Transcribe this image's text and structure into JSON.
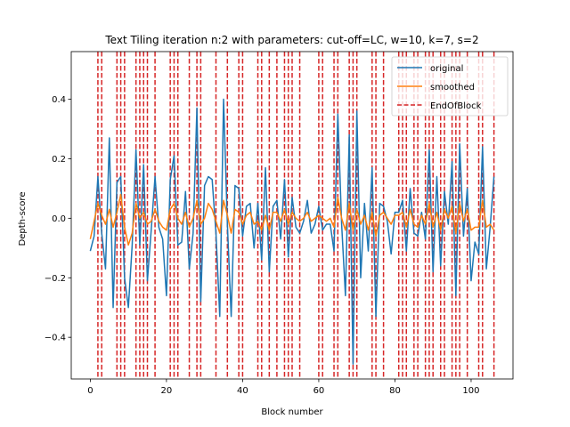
{
  "chart_data": {
    "type": "line",
    "title": "Text Tiling iteration n:2 with parameters: cut-off=LC, w=10, k=7, s=2",
    "xlabel": "Block number",
    "ylabel": "Depth-score",
    "xlim": [
      -5,
      111
    ],
    "ylim": [
      -0.54,
      0.56
    ],
    "xticks": [
      0,
      20,
      40,
      60,
      80,
      100
    ],
    "yticks": [
      -0.4,
      -0.2,
      0.0,
      0.2,
      0.4
    ],
    "xtick_labels": [
      "0",
      "20",
      "40",
      "60",
      "80",
      "100"
    ],
    "ytick_labels": [
      "−0.4",
      "−0.2",
      "0.0",
      "0.2",
      "0.4"
    ],
    "grid": false,
    "legend_position": "top-right",
    "colors": {
      "original": "#1f77b4",
      "smoothed": "#ff7f0e",
      "boundary": "#d62728"
    },
    "series": [
      {
        "name": "original",
        "x": [
          0,
          1,
          2,
          3,
          4,
          5,
          6,
          7,
          8,
          9,
          10,
          11,
          12,
          13,
          14,
          15,
          16,
          17,
          18,
          19,
          20,
          21,
          22,
          23,
          24,
          25,
          26,
          27,
          28,
          29,
          30,
          31,
          32,
          33,
          34,
          35,
          36,
          37,
          38,
          39,
          40,
          41,
          42,
          43,
          44,
          45,
          46,
          47,
          48,
          49,
          50,
          51,
          52,
          53,
          54,
          55,
          56,
          57,
          58,
          59,
          60,
          61,
          62,
          63,
          64,
          65,
          66,
          67,
          68,
          69,
          70,
          71,
          72,
          73,
          74,
          75,
          76,
          77,
          78,
          79,
          80,
          81,
          82,
          83,
          84,
          85,
          86,
          87,
          88,
          89,
          90,
          91,
          92,
          93,
          94,
          95,
          96,
          97,
          98,
          99,
          100,
          101,
          102,
          103,
          104,
          105,
          106
        ],
        "values": [
          -0.11,
          -0.06,
          0.14,
          -0.05,
          -0.17,
          0.27,
          -0.3,
          0.12,
          0.14,
          -0.2,
          -0.3,
          -0.09,
          0.23,
          -0.09,
          0.18,
          -0.21,
          -0.04,
          0.14,
          -0.03,
          -0.07,
          -0.26,
          0.13,
          0.21,
          -0.09,
          -0.08,
          0.09,
          -0.17,
          -0.05,
          0.37,
          -0.28,
          0.11,
          0.14,
          0.13,
          -0.05,
          -0.33,
          0.4,
          -0.02,
          -0.33,
          0.11,
          0.1,
          -0.06,
          0.04,
          0.05,
          -0.1,
          0.05,
          -0.14,
          0.17,
          -0.18,
          0.04,
          0.06,
          -0.07,
          0.13,
          -0.13,
          0.07,
          -0.03,
          -0.05,
          -0.01,
          0.06,
          -0.05,
          -0.02,
          0.04,
          -0.04,
          -0.02,
          -0.02,
          -0.11,
          0.35,
          -0.02,
          -0.26,
          0.28,
          -0.49,
          0.36,
          -0.2,
          0.05,
          -0.11,
          0.17,
          -0.33,
          0.05,
          0.04,
          -0.01,
          -0.12,
          0.02,
          0.02,
          0.06,
          -0.11,
          0.1,
          -0.05,
          -0.06,
          0.02,
          -0.07,
          0.23,
          -0.18,
          0.14,
          -0.16,
          0.09,
          -0.02,
          0.19,
          -0.26,
          0.25,
          -0.06,
          0.1,
          -0.21,
          -0.08,
          -0.12,
          0.24,
          -0.17,
          -0.03,
          0.14
        ]
      },
      {
        "name": "smoothed",
        "x": [
          0,
          1,
          2,
          3,
          4,
          5,
          6,
          7,
          8,
          9,
          10,
          11,
          12,
          13,
          14,
          15,
          16,
          17,
          18,
          19,
          20,
          21,
          22,
          23,
          24,
          25,
          26,
          27,
          28,
          29,
          30,
          31,
          32,
          33,
          34,
          35,
          36,
          37,
          38,
          39,
          40,
          41,
          42,
          43,
          44,
          45,
          46,
          47,
          48,
          49,
          50,
          51,
          52,
          53,
          54,
          55,
          56,
          57,
          58,
          59,
          60,
          61,
          62,
          63,
          64,
          65,
          66,
          67,
          68,
          69,
          70,
          71,
          72,
          73,
          74,
          75,
          76,
          77,
          78,
          79,
          80,
          81,
          82,
          83,
          84,
          85,
          86,
          87,
          88,
          89,
          90,
          91,
          92,
          93,
          94,
          95,
          96,
          97,
          98,
          99,
          100,
          101,
          102,
          103,
          104,
          105,
          106
        ],
        "values": [
          -0.07,
          -0.01,
          0.05,
          0.01,
          -0.02,
          0.03,
          -0.03,
          0.02,
          0.08,
          -0.03,
          -0.09,
          -0.05,
          0.05,
          0.0,
          0.02,
          -0.02,
          -0.01,
          0.03,
          -0.01,
          -0.03,
          -0.04,
          0.03,
          0.05,
          0.0,
          -0.02,
          0.02,
          -0.03,
          0.0,
          0.06,
          -0.02,
          0.0,
          0.05,
          0.03,
          -0.01,
          -0.05,
          0.06,
          0.01,
          -0.05,
          0.03,
          0.02,
          -0.02,
          0.01,
          0.02,
          -0.02,
          -0.01,
          -0.04,
          0.01,
          -0.04,
          0.02,
          0.02,
          -0.01,
          0.03,
          -0.02,
          0.02,
          0.0,
          -0.01,
          0.0,
          0.02,
          -0.01,
          0.0,
          0.01,
          0.0,
          -0.01,
          0.0,
          -0.03,
          0.07,
          0.0,
          -0.04,
          0.05,
          -0.04,
          0.03,
          -0.02,
          0.01,
          -0.04,
          0.02,
          -0.06,
          0.01,
          0.02,
          0.0,
          -0.02,
          0.01,
          0.01,
          0.02,
          -0.03,
          0.03,
          -0.02,
          -0.03,
          0.01,
          -0.02,
          0.05,
          -0.03,
          0.02,
          -0.04,
          0.03,
          0.0,
          0.04,
          -0.05,
          0.05,
          -0.01,
          0.03,
          -0.04,
          -0.03,
          -0.03,
          0.06,
          -0.03,
          -0.02,
          -0.04
        ]
      },
      {
        "name": "EndOfBlock",
        "style": "dashed-vertical",
        "x": [
          2,
          3,
          7,
          8,
          9,
          12,
          13,
          14,
          15,
          17,
          21,
          22,
          23,
          26,
          28,
          29,
          33,
          36,
          39,
          40,
          44,
          45,
          47,
          49,
          51,
          52,
          53,
          55,
          60,
          61,
          64,
          65,
          68,
          69,
          70,
          74,
          75,
          77,
          81,
          82,
          83,
          85,
          86,
          88,
          89,
          90,
          92,
          93,
          95,
          96,
          97,
          99,
          102,
          103,
          106
        ]
      }
    ]
  }
}
